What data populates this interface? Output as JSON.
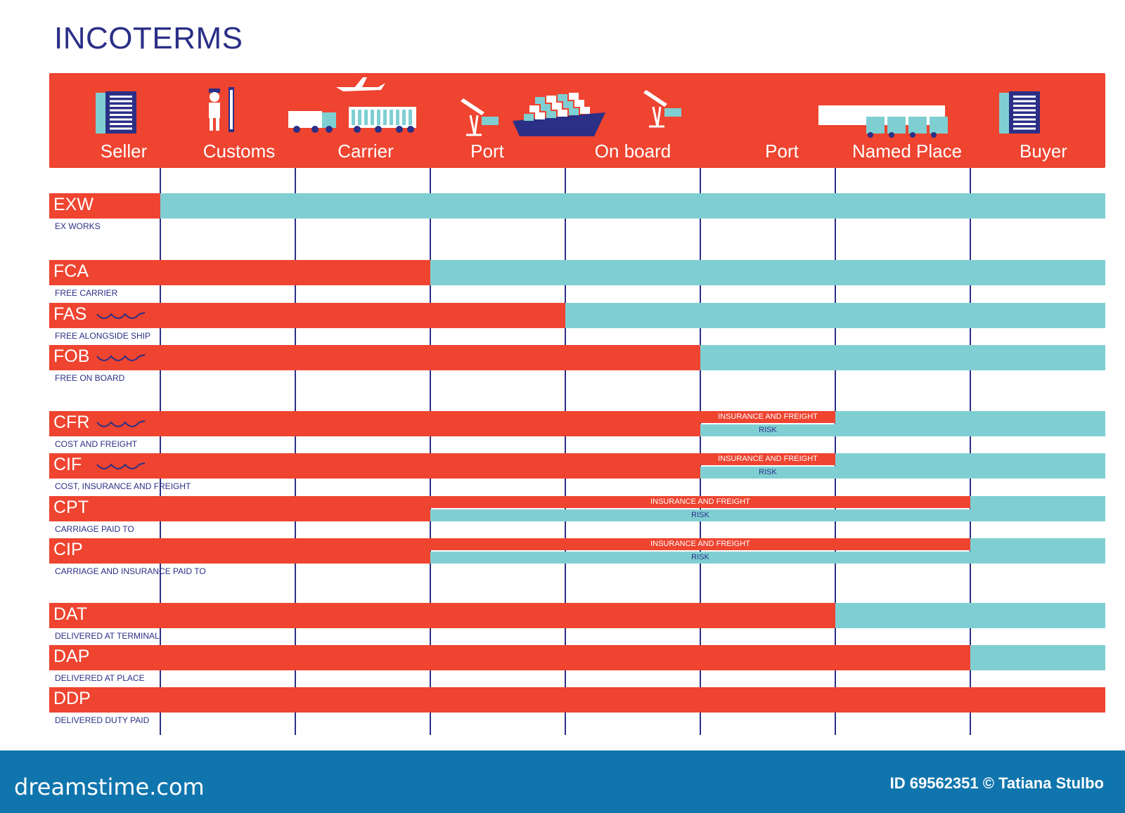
{
  "title": "INCOTERMS",
  "colors": {
    "seller": "#ee4430",
    "buyer": "#7fcfd2",
    "ink": "#2b2f86",
    "footer": "#1075ad"
  },
  "stages": [
    {
      "label": "Seller",
      "icon": "building-icon"
    },
    {
      "label": "Customs",
      "icon": "customs-officer-icon"
    },
    {
      "label": "Carrier",
      "icon": "truck-train-plane-icon"
    },
    {
      "label": "Port",
      "icon": "crane-icon"
    },
    {
      "label": "On board",
      "icon": "container-ship-icon"
    },
    {
      "label": "Port",
      "icon": "crane-icon"
    },
    {
      "label": "Named Place",
      "icon": "warehouse-trucks-icon"
    },
    {
      "label": "Buyer",
      "icon": "building-icon"
    }
  ],
  "terms": [
    {
      "code": "EXW",
      "name": "EX WORKS",
      "seller_until": 1,
      "wave": false
    },
    {
      "code": "FCA",
      "name": "FREE CARRIER",
      "seller_until": 3,
      "wave": false
    },
    {
      "code": "FAS",
      "name": "FREE ALONGSIDE SHIP",
      "seller_until": 4,
      "wave": true
    },
    {
      "code": "FOB",
      "name": "FREE ON BOARD",
      "seller_until": 5,
      "wave": true
    },
    {
      "code": "CFR",
      "name": "COST AND FREIGHT",
      "seller_until": 5,
      "wave": true,
      "split": {
        "from": 5,
        "to": 6,
        "insurance": "INSURANCE AND FREIGHT",
        "risk": "RISK"
      }
    },
    {
      "code": "CIF",
      "name": "COST, INSURANCE AND  FREIGHT",
      "seller_until": 5,
      "wave": true,
      "split": {
        "from": 5,
        "to": 6,
        "insurance": "INSURANCE AND FREIGHT",
        "risk": "RISK"
      }
    },
    {
      "code": "CPT",
      "name": "CARRIAGE PAID TO",
      "seller_until": 3,
      "wave": false,
      "split": {
        "from": 3,
        "to": 7,
        "insurance": "INSURANCE AND FREIGHT",
        "risk": "RISK"
      }
    },
    {
      "code": "CIP",
      "name": "CARRIAGE AND INSURANCE PAID TO",
      "seller_until": 3,
      "wave": false,
      "split": {
        "from": 3,
        "to": 7,
        "insurance": "INSURANCE AND FREIGHT",
        "risk": "RISK"
      }
    },
    {
      "code": "DAT",
      "name": "DELIVERED AT TERMINAL",
      "seller_until": 6,
      "wave": false
    },
    {
      "code": "DAP",
      "name": "DELIVERED AT PLACE",
      "seller_until": 7,
      "wave": false
    },
    {
      "code": "DDP",
      "name": "DELIVERED DUTY PAID",
      "seller_until": 8,
      "wave": false
    }
  ],
  "footer": {
    "brand": "dreamstime.com",
    "credit": "ID 69562351 © Tatiana Stulbo"
  }
}
